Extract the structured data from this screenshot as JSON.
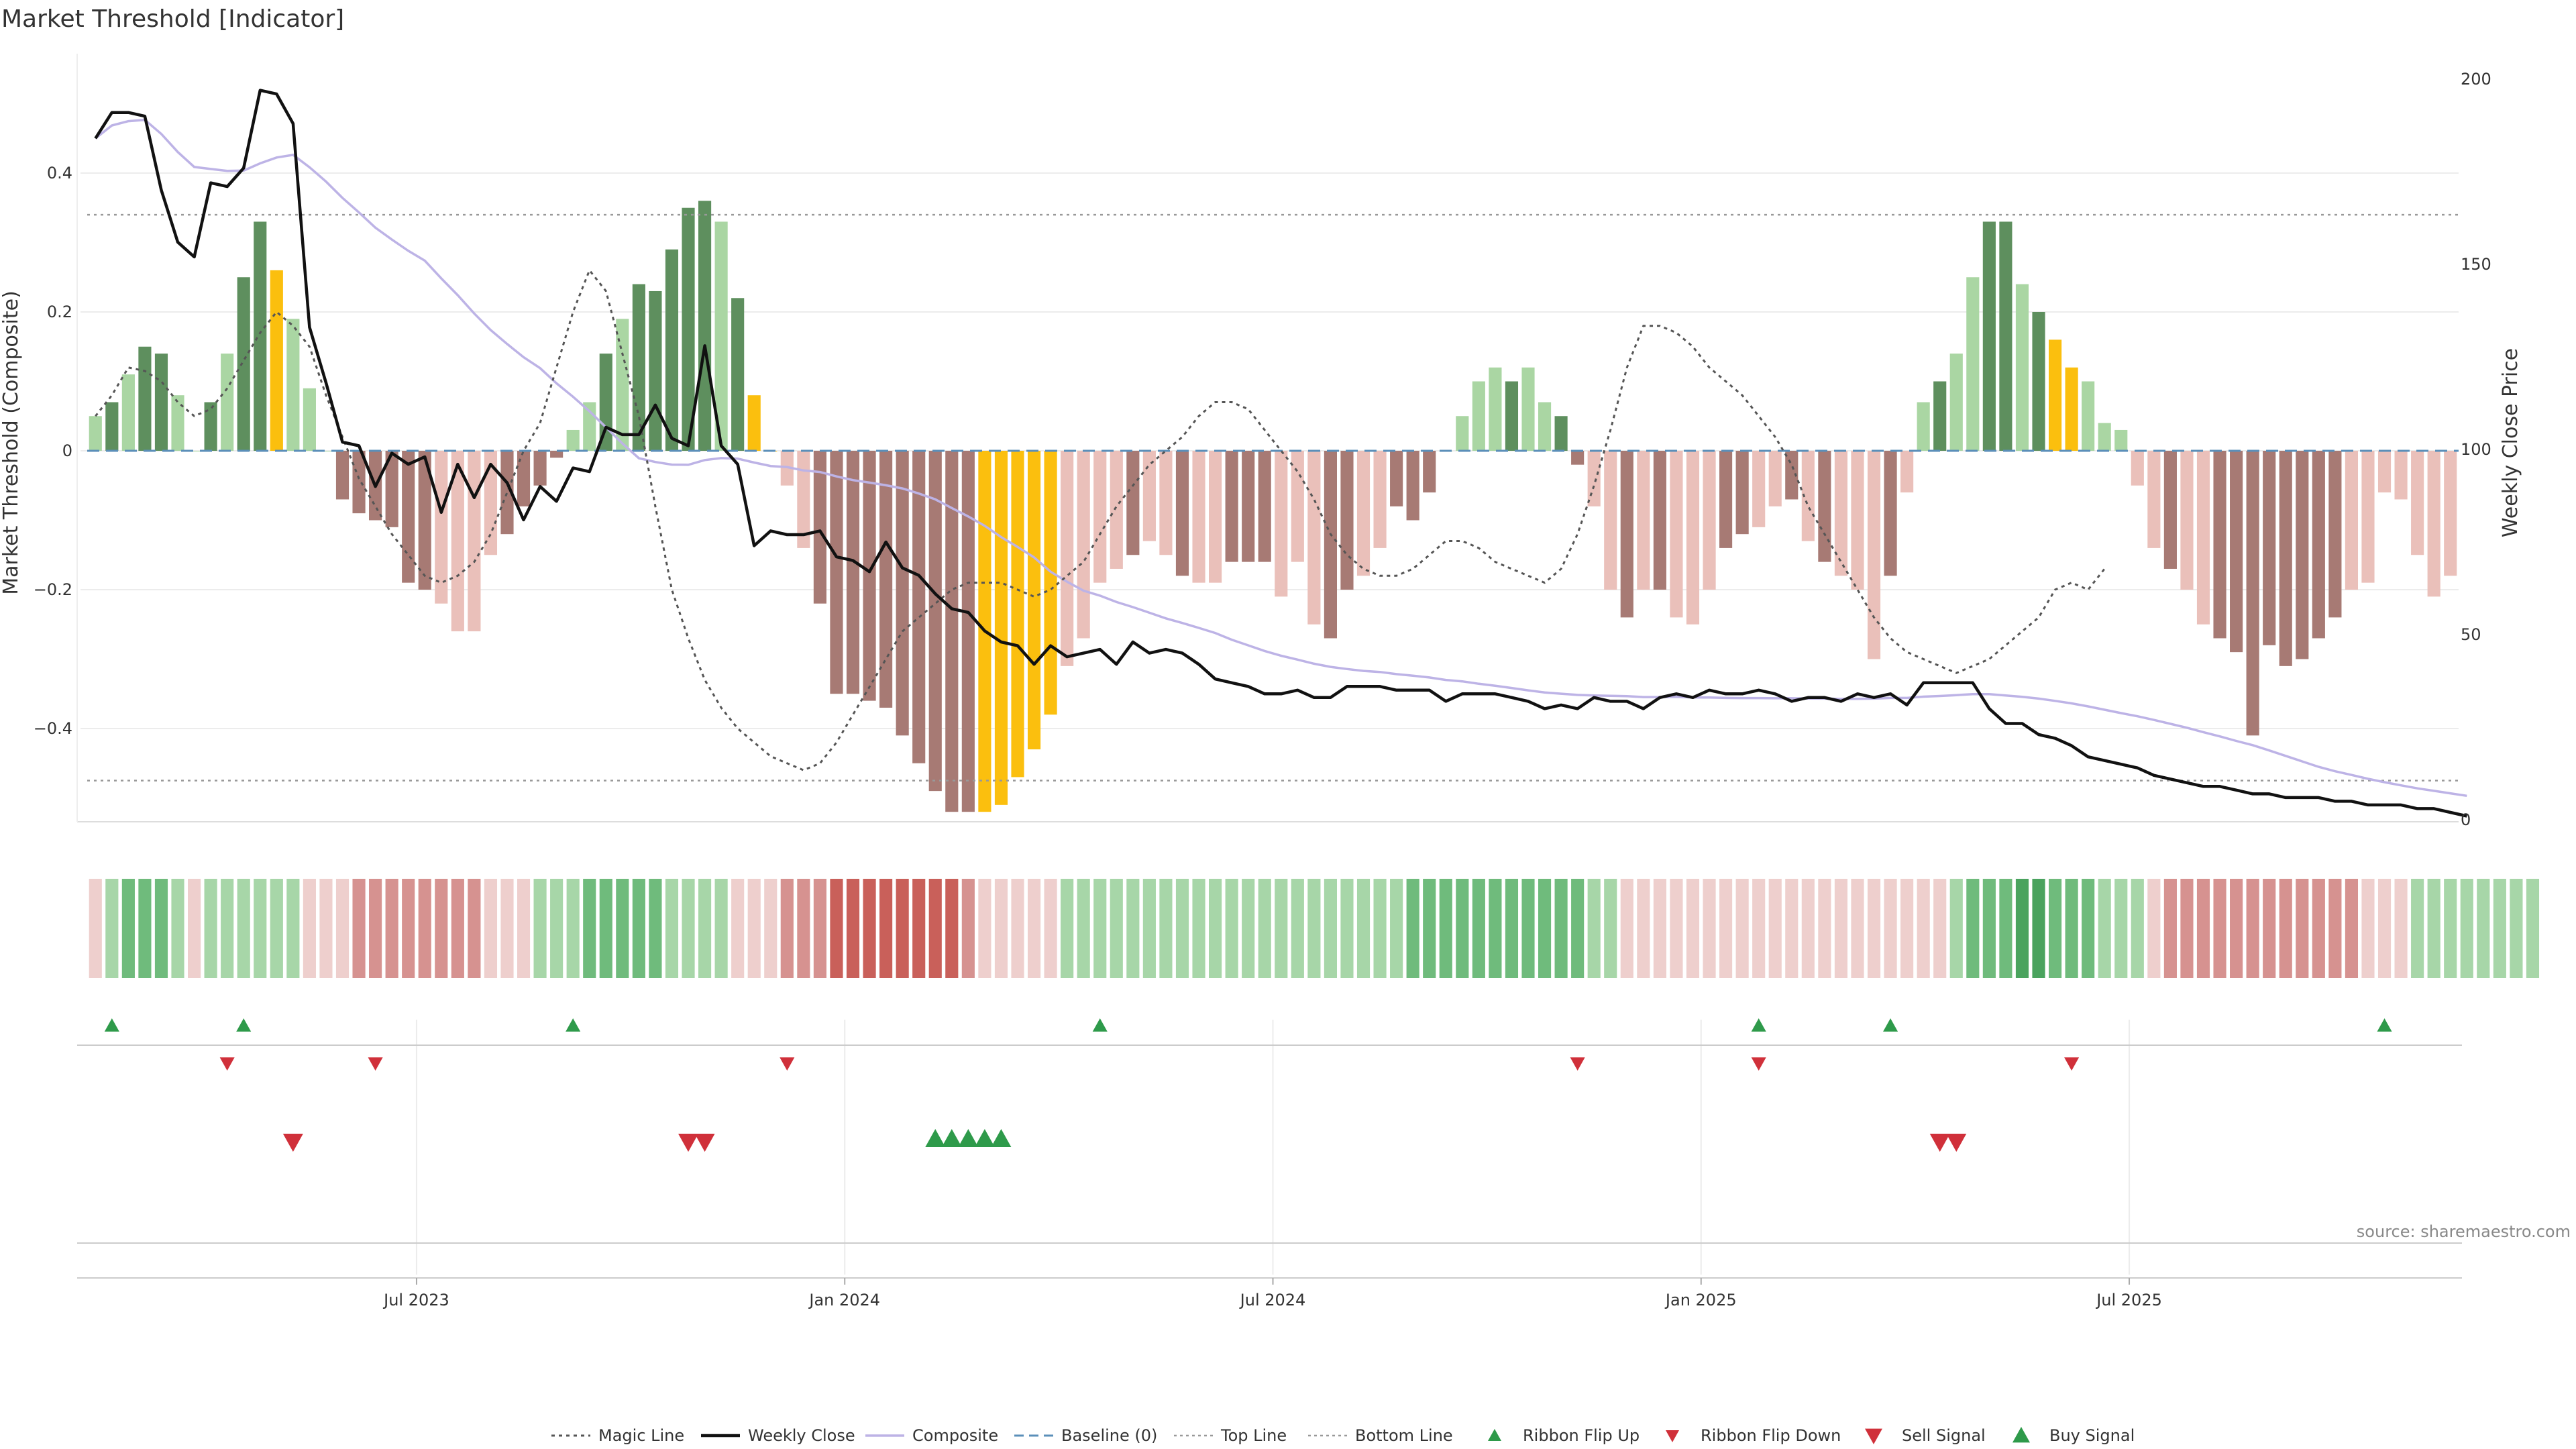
{
  "chart_data": {
    "type": "bar",
    "title": "Market Threshold [Indicator]",
    "ylabel_left": "Market Threshold (Composite)",
    "ylabel_right": "Weekly Close Price",
    "ylim_left": [
      -0.54,
      0.57
    ],
    "ylim_right": [
      -5,
      215
    ],
    "left_ticks": [
      {
        "value": 0.4,
        "label": "0.4"
      },
      {
        "value": 0.2,
        "label": "0.2"
      },
      {
        "value": 0,
        "label": "0"
      },
      {
        "value": -0.2,
        "label": "−0.2"
      },
      {
        "value": -0.4,
        "label": "−0.4"
      }
    ],
    "right_ticks": [
      {
        "value": 200,
        "label": "200"
      },
      {
        "value": 150,
        "label": "150"
      },
      {
        "value": 100,
        "label": "100"
      },
      {
        "value": 50,
        "label": "50"
      },
      {
        "value": 0,
        "label": "0"
      }
    ],
    "x_ticks": [
      {
        "week": 20,
        "label": "Jul 2023"
      },
      {
        "week": 46,
        "label": "Jan 2024"
      },
      {
        "week": 72,
        "label": "Jul 2024"
      },
      {
        "week": 98,
        "label": "Jan 2025"
      },
      {
        "week": 124,
        "label": "Jul 2025"
      }
    ],
    "top_line": 0.34,
    "bottom_line": -0.475,
    "baseline": 0,
    "composite": [
      0.05,
      0.07,
      0.11,
      0.15,
      0.14,
      0.08,
      0,
      0.07,
      0.14,
      0.25,
      0.33,
      0.26,
      0.19,
      0.09,
      0,
      -0.07,
      -0.09,
      -0.1,
      -0.11,
      -0.19,
      -0.2,
      -0.22,
      -0.26,
      -0.26,
      -0.15,
      -0.12,
      -0.08,
      -0.05,
      -0.01,
      0.03,
      0.07,
      0.14,
      0.19,
      0.24,
      0.23,
      0.29,
      0.35,
      0.36,
      0.33,
      0.22,
      0.08,
      0,
      -0.05,
      -0.14,
      -0.22,
      -0.35,
      -0.35,
      -0.36,
      -0.37,
      -0.41,
      -0.45,
      -0.49,
      -0.52,
      -0.52,
      -0.52,
      -0.51,
      -0.47,
      -0.43,
      -0.38,
      -0.31,
      -0.27,
      -0.19,
      -0.17,
      -0.15,
      -0.13,
      -0.15,
      -0.18,
      -0.19,
      -0.19,
      -0.16,
      -0.16,
      -0.16,
      -0.21,
      -0.16,
      -0.25,
      -0.27,
      -0.2,
      -0.18,
      -0.14,
      -0.08,
      -0.1,
      -0.06,
      0,
      0.05,
      0.1,
      0.12,
      0.1,
      0.12,
      0.07,
      0.05,
      -0.02,
      -0.08,
      -0.2,
      -0.24,
      -0.2,
      -0.2,
      -0.24,
      -0.25,
      -0.2,
      -0.14,
      -0.12,
      -0.11,
      -0.08,
      -0.07,
      -0.13,
      -0.16,
      -0.18,
      -0.2,
      -0.3,
      -0.18,
      -0.06,
      0.07,
      0.1,
      0.14,
      0.25,
      0.33,
      0.33,
      0.24,
      0.2,
      0.16,
      0.12,
      0.1,
      0.04,
      0.03,
      -0.05,
      -0.14,
      -0.17,
      -0.2,
      -0.25,
      -0.27,
      -0.29,
      -0.41,
      -0.28,
      -0.31,
      -0.3,
      -0.27,
      -0.24,
      -0.2,
      -0.19,
      -0.06,
      -0.07,
      -0.15,
      -0.21,
      -0.18
    ],
    "bar_colors": {
      "strong_up": "#5e8f5e",
      "weak_up": "#aad6a3",
      "strong_down": "#a77a74",
      "weak_down": "#eac0ba",
      "extreme": "#fbbf0e"
    },
    "bar_styles": "wswsswwswssewwwsssssswwwwsssswwswssssswseewwsssssssssseeeeewwwwswwswwssswwwsswwssswwwwswwsswwswswwwsswwswswwwswwswwsswseewwwwwswwsssssssswwwwwwwwwsws",
    "weekly_close": [
      184,
      191,
      191,
      190,
      170,
      156,
      152,
      172,
      171,
      176,
      197,
      196,
      188,
      133,
      118,
      102,
      101,
      90,
      99,
      96,
      98,
      83,
      96,
      87,
      96,
      91,
      81,
      90,
      86,
      95,
      94,
      106,
      104,
      104,
      112,
      103,
      101,
      128,
      101,
      96,
      74,
      78,
      77,
      77,
      78,
      71,
      70,
      67,
      75,
      68,
      66,
      61,
      57,
      56,
      51,
      48,
      47,
      42,
      47,
      44,
      45,
      46,
      42,
      48,
      45,
      46,
      45,
      42,
      38,
      37,
      36,
      34,
      34,
      35,
      33,
      33,
      36,
      36,
      36,
      35,
      35,
      35,
      32,
      34,
      34,
      34,
      33,
      32,
      30,
      31,
      30,
      33,
      32,
      32,
      30,
      33,
      34,
      33,
      35,
      34,
      34,
      35,
      34,
      32,
      33,
      33,
      32,
      34,
      33,
      34,
      31,
      37,
      37,
      37,
      37,
      30,
      26,
      26,
      23,
      22,
      20,
      17,
      16,
      15,
      14,
      12,
      11,
      10,
      9,
      9,
      8,
      7,
      7,
      6,
      6,
      6,
      5,
      5,
      4,
      4,
      4,
      3,
      3,
      2,
      1
    ],
    "magic_line": [
      0.05,
      0.08,
      0.12,
      0.115,
      0.1,
      0.07,
      0.05,
      0.06,
      0.09,
      0.13,
      0.17,
      0.2,
      0.18,
      0.15,
      0.08,
      0.02,
      -0.04,
      -0.08,
      -0.12,
      -0.15,
      -0.18,
      -0.19,
      -0.18,
      -0.16,
      -0.12,
      -0.06,
      0,
      0.04,
      0.12,
      0.2,
      0.26,
      0.23,
      0.14,
      0.05,
      -0.08,
      -0.2,
      -0.27,
      -0.33,
      -0.37,
      -0.4,
      -0.42,
      -0.44,
      -0.45,
      -0.46,
      -0.45,
      -0.42,
      -0.38,
      -0.34,
      -0.3,
      -0.26,
      -0.24,
      -0.22,
      -0.2,
      -0.19,
      -0.19,
      -0.19,
      -0.2,
      -0.21,
      -0.2,
      -0.18,
      -0.16,
      -0.12,
      -0.08,
      -0.05,
      -0.02,
      0,
      0.02,
      0.05,
      0.07,
      0.07,
      0.06,
      0.03,
      0,
      -0.03,
      -0.07,
      -0.12,
      -0.15,
      -0.17,
      -0.18,
      -0.18,
      -0.17,
      -0.15,
      -0.13,
      -0.13,
      -0.14,
      -0.16,
      -0.17,
      -0.18,
      -0.19,
      -0.17,
      -0.12,
      -0.05,
      0.03,
      0.12,
      0.18,
      0.18,
      0.17,
      0.15,
      0.12,
      0.1,
      0.08,
      0.05,
      0.02,
      -0.02,
      -0.08,
      -0.12,
      -0.16,
      -0.2,
      -0.24,
      -0.27,
      -0.29,
      -0.3,
      -0.31,
      -0.32,
      -0.31,
      -0.3,
      -0.28,
      -0.26,
      -0.24,
      -0.2,
      -0.19,
      -0.2,
      -0.17
    ],
    "ribbon_levels": [
      -1,
      1,
      2,
      2,
      2,
      1,
      -1,
      1,
      1,
      1,
      1,
      1,
      1,
      -1,
      -1,
      -1,
      -2,
      -2,
      -2,
      -2,
      -2,
      -2,
      -2,
      -2,
      -1,
      -1,
      -1,
      1,
      1,
      1,
      2,
      2,
      2,
      2,
      2,
      1,
      1,
      1,
      1,
      -1,
      -1,
      -1,
      -2,
      -2,
      -2,
      -3,
      -3,
      -3,
      -3,
      -3,
      -3,
      -3,
      -3,
      -2,
      -1,
      -1,
      -1,
      -1,
      -1,
      1,
      1,
      1,
      1,
      1,
      1,
      1,
      1,
      1,
      1,
      1,
      1,
      1,
      1,
      1,
      1,
      1,
      1,
      1,
      1,
      1,
      2,
      2,
      2,
      2,
      2,
      2,
      2,
      2,
      2,
      2,
      2,
      1,
      1,
      -1,
      -1,
      -1,
      -1,
      -1,
      -1,
      -1,
      -1,
      -1,
      -1,
      -1,
      -1,
      -1,
      -1,
      -1,
      -1,
      -1,
      -1,
      -1,
      -1,
      1,
      2,
      2,
      2,
      3,
      3,
      2,
      2,
      2,
      1,
      1,
      1,
      -1,
      -2,
      -2,
      -2,
      -2,
      -2,
      -2,
      -2,
      -2,
      -2,
      -2,
      -2,
      -2,
      -1,
      -1,
      -1,
      1,
      1,
      1,
      1,
      1,
      1,
      1,
      1
    ],
    "ribbon_flip_up": [
      1,
      9,
      29,
      61,
      101,
      109,
      139
    ],
    "ribbon_flip_down": [
      8,
      17,
      42,
      90,
      101,
      120
    ],
    "sell_signal": [
      12,
      36,
      37,
      112,
      113
    ],
    "buy_signal": [
      51,
      52,
      53,
      54,
      55
    ],
    "legend": [
      "Magic Line",
      "Weekly Close",
      "Composite",
      "Baseline (0)",
      "Top Line",
      "Bottom Line",
      "Ribbon Flip Up",
      "Ribbon Flip Down",
      "Sell Signal",
      "Buy Signal"
    ],
    "source": "source: sharemaestro.com"
  }
}
